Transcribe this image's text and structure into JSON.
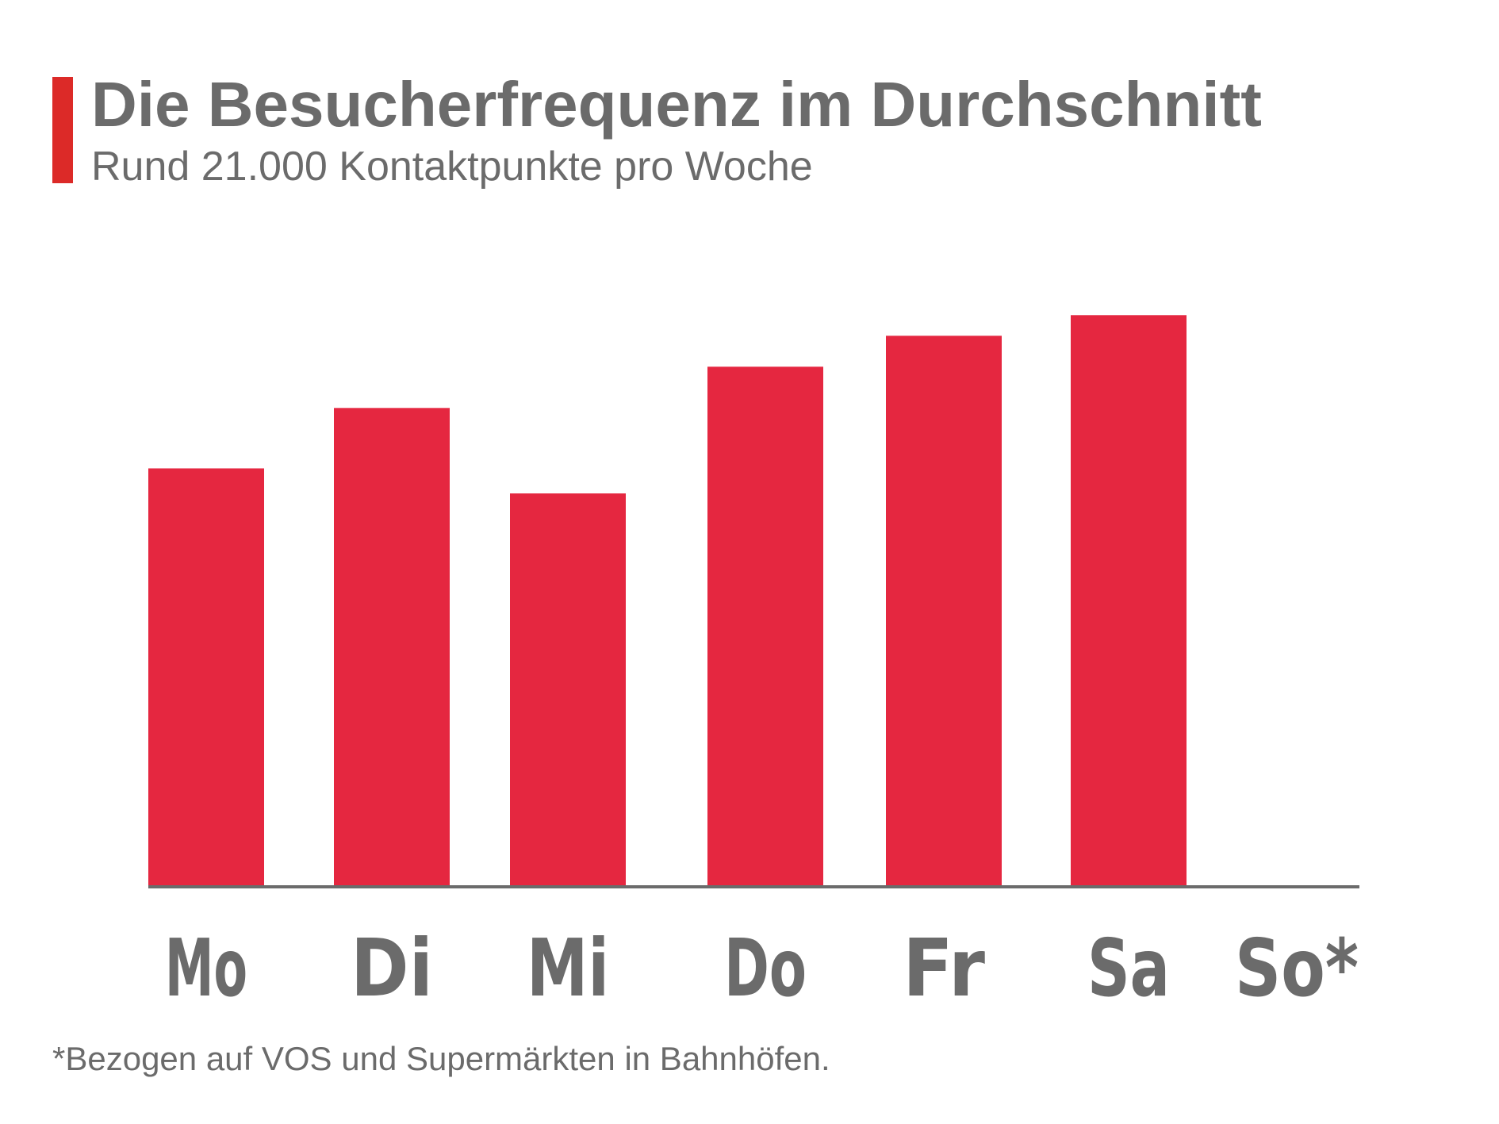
{
  "header": {
    "title": "Die Besucherfrequenz im Durchschnitt",
    "subtitle": "Rund 21.000 Kontaktpunkte pro Woche"
  },
  "footnote": "*Bezogen auf VOS und Supermärkten in Bahnhöfen.",
  "colors": {
    "bar": "#e52740",
    "accent": "#dc2a28",
    "text": "#6b6b6b",
    "axis": "#6b6b6b"
  },
  "chart_data": {
    "type": "bar",
    "title": "Die Besucherfrequenz im Durchschnitt",
    "subtitle": "Rund 21.000 Kontaktpunkte pro Woche",
    "categories": [
      "Mo",
      "Di",
      "Mi",
      "Do",
      "Fr",
      "Sa",
      "So*"
    ],
    "values": [
      2840,
      3250,
      2670,
      3530,
      3740,
      3880,
      0
    ],
    "xlabel": "",
    "ylabel": "",
    "ylim": [
      0,
      4000
    ],
    "grid": false,
    "legend": "none"
  }
}
